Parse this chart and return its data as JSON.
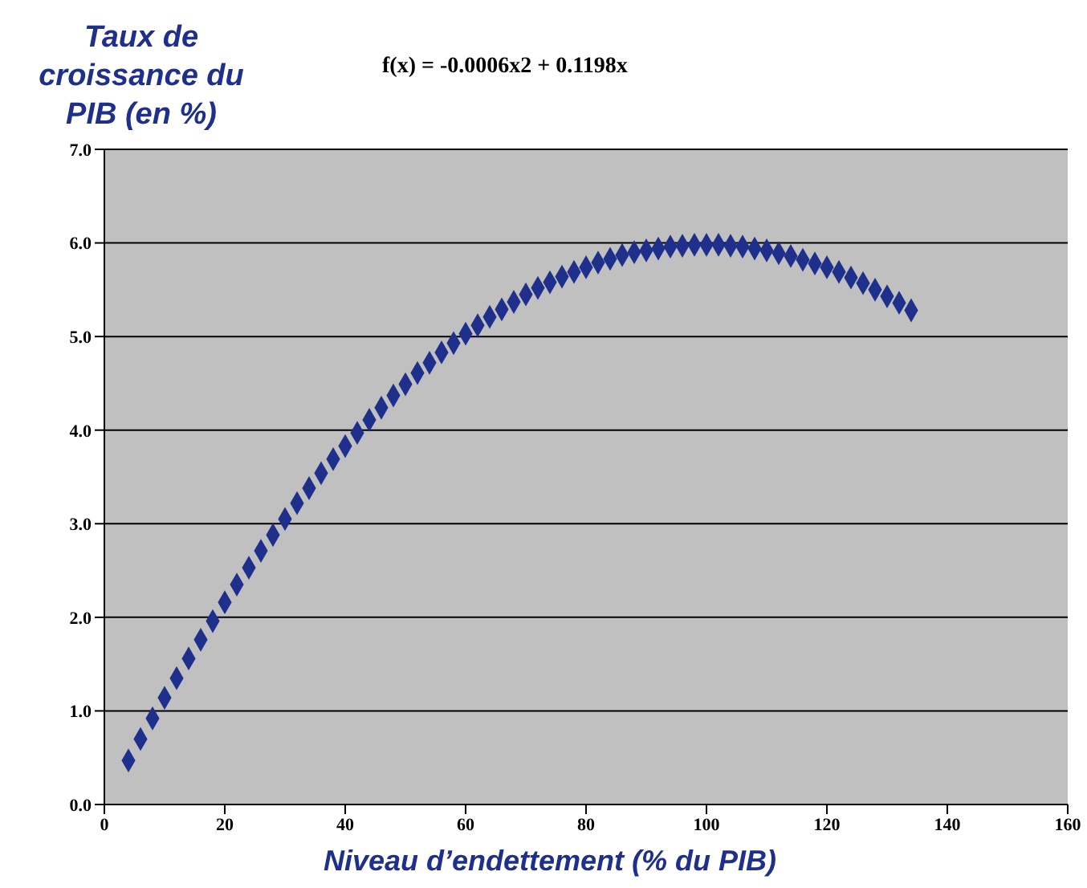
{
  "chart_data": {
    "type": "scatter",
    "title": "f(x) = -0.0006x2 + 0.1198x",
    "xlabel": "Niveau d’endettement (% du PIB)",
    "ylabel": "Taux de croissance du PIB (en %)",
    "x": [
      4,
      6,
      8,
      10,
      12,
      14,
      16,
      18,
      20,
      22,
      24,
      26,
      28,
      30,
      32,
      34,
      36,
      38,
      40,
      42,
      44,
      46,
      48,
      50,
      52,
      54,
      56,
      58,
      60,
      62,
      64,
      66,
      68,
      70,
      72,
      74,
      76,
      78,
      80,
      82,
      84,
      86,
      88,
      90,
      92,
      94,
      96,
      98,
      100,
      102,
      104,
      106,
      108,
      110,
      112,
      114,
      116,
      118,
      120,
      122,
      124,
      126,
      128,
      130,
      132,
      134
    ],
    "series": [
      {
        "color": "#1f2f8c",
        "values": [
          0.47,
          0.7,
          0.92,
          1.14,
          1.35,
          1.56,
          1.76,
          1.96,
          2.16,
          2.35,
          2.53,
          2.71,
          2.88,
          3.05,
          3.22,
          3.38,
          3.54,
          3.69,
          3.83,
          3.97,
          4.11,
          4.24,
          4.37,
          4.49,
          4.61,
          4.72,
          4.83,
          4.93,
          5.03,
          5.12,
          5.21,
          5.29,
          5.37,
          5.45,
          5.52,
          5.58,
          5.64,
          5.69,
          5.74,
          5.79,
          5.83,
          5.87,
          5.9,
          5.92,
          5.94,
          5.96,
          5.97,
          5.98,
          5.98,
          5.98,
          5.97,
          5.96,
          5.94,
          5.92,
          5.89,
          5.86,
          5.82,
          5.78,
          5.74,
          5.69,
          5.63,
          5.57,
          5.5,
          5.43,
          5.36,
          5.28
        ]
      }
    ],
    "xlim": [
      0,
      160
    ],
    "xticks": [
      0,
      20,
      40,
      60,
      80,
      100,
      120,
      140,
      160
    ],
    "ylim": [
      0,
      7
    ],
    "yticks": [
      {
        "value": 0,
        "label": "0.0"
      },
      {
        "value": 1,
        "label": "1.0"
      },
      {
        "value": 2,
        "label": "2.0"
      },
      {
        "value": 3,
        "label": "3.0"
      },
      {
        "value": 4,
        "label": "4.0"
      },
      {
        "value": 5,
        "label": "5.0"
      },
      {
        "value": 6,
        "label": "6.0"
      },
      {
        "value": 7,
        "label": "7.0"
      }
    ],
    "grid": "y",
    "marker": "diamond",
    "legend": false
  }
}
